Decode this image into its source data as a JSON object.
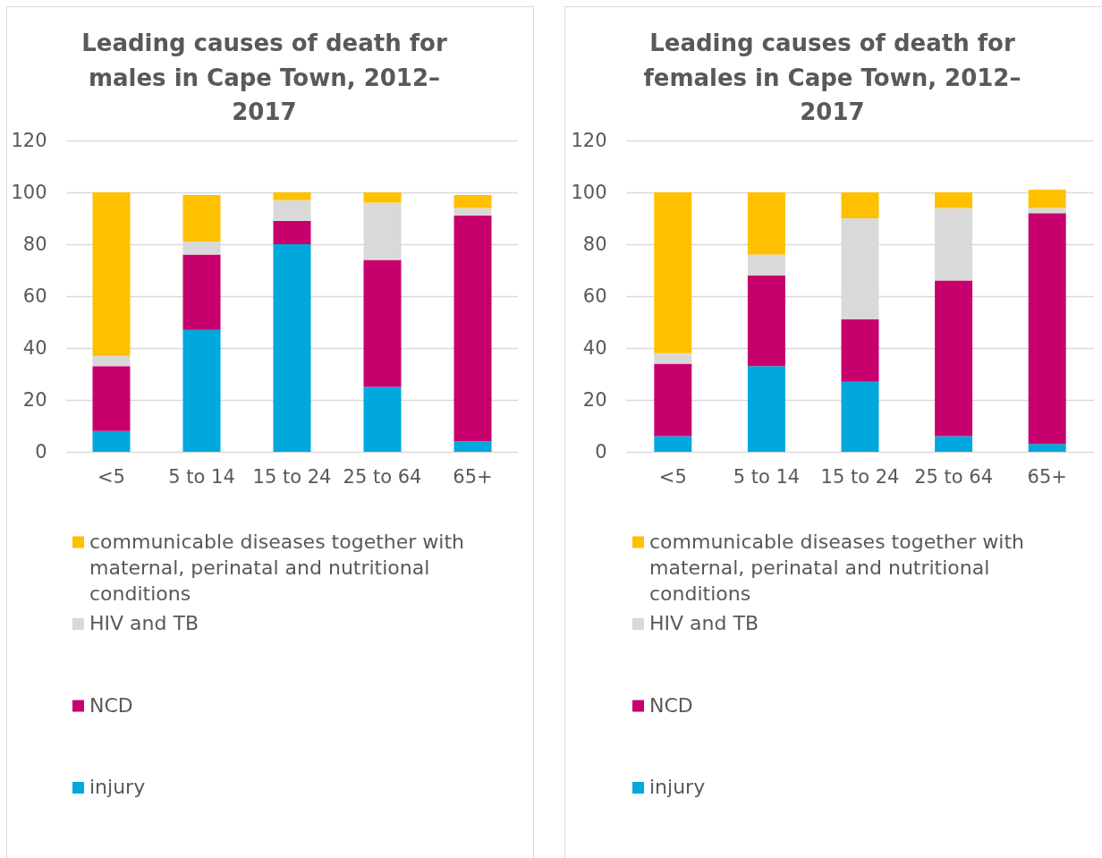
{
  "chart_data": [
    {
      "type": "bar",
      "title": "Leading causes of death for males in Cape Town, 2012–2017",
      "categories": [
        "<5",
        "5 to 14",
        "15 to 24",
        "25 to 64",
        "65+"
      ],
      "series": [
        {
          "name": "injury",
          "color": "#00a8de",
          "values": [
            8,
            47,
            80,
            25,
            4
          ]
        },
        {
          "name": "NCD",
          "color": "#c8006e",
          "values": [
            25,
            29,
            9,
            49,
            87
          ]
        },
        {
          "name": "HIV and TB",
          "color": "#d9d9d9",
          "values": [
            4,
            5,
            8,
            22,
            3
          ]
        },
        {
          "name": "communicable diseases together with maternal, perinatal and nutritional conditions",
          "color": "#ffc000",
          "values": [
            63,
            18,
            3,
            4,
            5
          ]
        }
      ],
      "stacked": true,
      "ylim": [
        0,
        120
      ],
      "yticks": [
        0,
        20,
        40,
        60,
        80,
        100,
        120
      ],
      "grid": "y",
      "legend": "bottom"
    },
    {
      "type": "bar",
      "title": "Leading causes of death for females in Cape Town, 2012–2017",
      "categories": [
        "<5",
        "5 to 14",
        "15 to 24",
        "25 to 64",
        "65+"
      ],
      "series": [
        {
          "name": "injury",
          "color": "#00a8de",
          "values": [
            6,
            33,
            27,
            6,
            3
          ]
        },
        {
          "name": "NCD",
          "color": "#c8006e",
          "values": [
            28,
            35,
            24,
            60,
            89
          ]
        },
        {
          "name": "HIV and TB",
          "color": "#d9d9d9",
          "values": [
            4,
            8,
            39,
            28,
            2
          ]
        },
        {
          "name": "communicable diseases together with maternal, perinatal and nutritional conditions",
          "color": "#ffc000",
          "values": [
            62,
            24,
            10,
            6,
            7
          ]
        }
      ],
      "stacked": true,
      "ylim": [
        0,
        120
      ],
      "yticks": [
        0,
        20,
        40,
        60,
        80,
        100,
        120
      ],
      "grid": "y",
      "legend": "bottom"
    }
  ]
}
